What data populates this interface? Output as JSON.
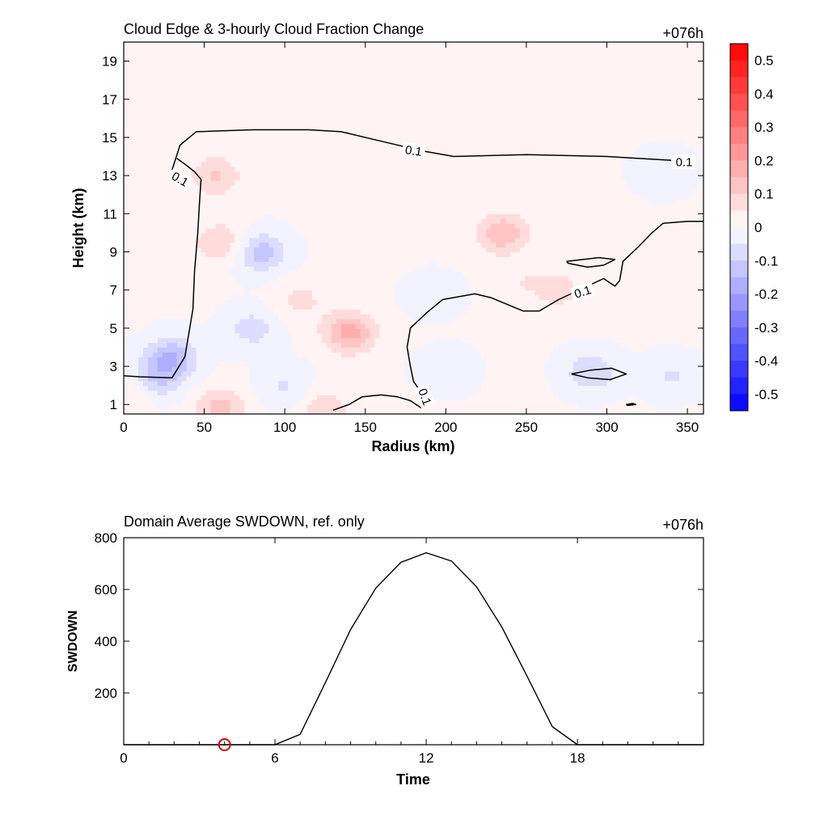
{
  "chart_data": [
    {
      "type": "heatmap",
      "title": "Cloud Edge & 3-hourly Cloud Fraction Change",
      "time_label": "+076h",
      "xlabel": "Radius (km)",
      "ylabel": "Height (km)",
      "xlim": [
        0,
        360
      ],
      "ylim": [
        0.5,
        20
      ],
      "xticks": [
        "0",
        "50",
        "100",
        "150",
        "200",
        "250",
        "300",
        "350"
      ],
      "yticks": [
        "1",
        "3",
        "5",
        "7",
        "9",
        "11",
        "13",
        "15",
        "17",
        "19"
      ],
      "colorbar": {
        "min": -0.55,
        "max": 0.55,
        "levels": 22,
        "ticks": [
          "0.5",
          "0.4",
          "0.3",
          "0.2",
          "0.1",
          "0",
          "-0.1",
          "-0.2",
          "-0.3",
          "-0.4",
          "-0.5"
        ],
        "low_color": "#0000ff",
        "mid_color": "#ffffff",
        "high_color": "#ff0000"
      },
      "contour_level": "0.1",
      "contour_labels": [
        "0.1",
        "0.1",
        "0.1",
        "0.1",
        "0.1"
      ],
      "features": [
        {
          "r": 140,
          "z": 4.8,
          "value": 0.17
        },
        {
          "r": 235,
          "z": 10.0,
          "value": 0.14
        },
        {
          "r": 60,
          "z": 9.5,
          "value": 0.1
        },
        {
          "r": 57,
          "z": 13.0,
          "value": 0.1
        },
        {
          "r": 60,
          "z": 0.8,
          "value": 0.12
        },
        {
          "r": 125,
          "z": 0.8,
          "value": 0.08
        },
        {
          "r": 110,
          "z": 6.5,
          "value": 0.06
        },
        {
          "r": 270,
          "z": 7.0,
          "value": 0.07
        },
        {
          "r": 245,
          "z": 7.5,
          "value": 0.04
        },
        {
          "r": 5,
          "z": 1.6,
          "value": 0.06
        },
        {
          "r": 85,
          "z": 9.0,
          "value": -0.13
        },
        {
          "r": 30,
          "z": 3.5,
          "value": -0.15
        },
        {
          "r": 20,
          "z": 2.3,
          "value": -0.11
        },
        {
          "r": 80,
          "z": 5.0,
          "value": -0.08
        },
        {
          "r": 290,
          "z": 2.7,
          "value": -0.1
        },
        {
          "r": 200,
          "z": 2.8,
          "value": -0.05
        },
        {
          "r": 100,
          "z": 2.0,
          "value": -0.06
        },
        {
          "r": 335,
          "z": 13.2,
          "value": -0.05
        },
        {
          "r": 192,
          "z": 6.8,
          "value": -0.04
        },
        {
          "r": 340,
          "z": 2.5,
          "value": -0.06
        }
      ],
      "contours": [
        [
          [
            30,
            13.3
          ],
          [
            35,
            14.6
          ],
          [
            45,
            15.3
          ],
          [
            80,
            15.4
          ],
          [
            115,
            15.4
          ],
          [
            135,
            15.3
          ],
          [
            160,
            14.8
          ],
          [
            185,
            14.3
          ],
          [
            205,
            14.0
          ],
          [
            250,
            14.1
          ],
          [
            300,
            14.0
          ],
          [
            340,
            13.8
          ]
        ],
        [
          [
            0,
            2.5
          ],
          [
            10,
            2.45
          ],
          [
            30,
            2.4
          ],
          [
            38,
            3.5
          ],
          [
            43,
            6.0
          ],
          [
            44,
            8.0
          ],
          [
            46,
            10.0
          ],
          [
            47,
            11.5
          ],
          [
            48,
            12.8
          ],
          [
            44,
            13.2
          ],
          [
            38,
            13.6
          ],
          [
            33,
            13.9
          ]
        ],
        [
          [
            185,
            0.8
          ],
          [
            178,
            1.2
          ],
          [
            170,
            1.4
          ],
          [
            160,
            1.5
          ],
          [
            148,
            1.4
          ],
          [
            140,
            1.0
          ],
          [
            130,
            0.7
          ]
        ],
        [
          [
            185,
            1.6
          ],
          [
            180,
            2.2
          ],
          [
            178,
            3.0
          ],
          [
            176,
            4.0
          ],
          [
            178,
            5.0
          ],
          [
            188,
            5.8
          ],
          [
            198,
            6.5
          ],
          [
            218,
            6.8
          ],
          [
            228,
            6.6
          ],
          [
            248,
            5.9
          ],
          [
            258,
            5.9
          ],
          [
            270,
            6.5
          ],
          [
            298,
            7.6
          ],
          [
            305,
            7.2
          ],
          [
            308,
            7.5
          ],
          [
            310,
            8.5
          ],
          [
            320,
            9.3
          ],
          [
            328,
            10.0
          ],
          [
            335,
            10.5
          ],
          [
            350,
            10.6
          ],
          [
            360,
            10.6
          ]
        ],
        [
          [
            275,
            8.5
          ],
          [
            295,
            8.7
          ],
          [
            305,
            8.6
          ],
          [
            298,
            8.3
          ],
          [
            288,
            8.2
          ],
          [
            276,
            8.4
          ],
          [
            275,
            8.5
          ]
        ],
        [
          [
            278,
            2.6
          ],
          [
            290,
            2.8
          ],
          [
            303,
            2.9
          ],
          [
            312,
            2.6
          ],
          [
            302,
            2.3
          ],
          [
            288,
            2.4
          ],
          [
            278,
            2.6
          ]
        ],
        [
          [
            312,
            1.0
          ],
          [
            316,
            1.05
          ],
          [
            318,
            1.0
          ],
          [
            313,
            0.95
          ],
          [
            312,
            1.0
          ]
        ]
      ],
      "contour_label_positions": [
        {
          "r": 180,
          "z": 14.3,
          "angle": 8
        },
        {
          "r": 348,
          "z": 13.7,
          "angle": 0
        },
        {
          "r": 35,
          "z": 12.8,
          "angle": 30
        },
        {
          "r": 285,
          "z": 6.9,
          "angle": -18
        },
        {
          "r": 187,
          "z": 1.4,
          "angle": 70
        }
      ]
    },
    {
      "type": "line",
      "title": "Domain Average SWDOWN, ref. only",
      "time_label": "+076h",
      "xlabel": "Time",
      "ylabel": "SWDOWN",
      "xlim": [
        0,
        23
      ],
      "ylim": [
        0,
        800
      ],
      "xticks": [
        "0",
        "6",
        "12",
        "18"
      ],
      "yticks": [
        "200",
        "400",
        "600",
        "800"
      ],
      "x": [
        0,
        1,
        2,
        3,
        4,
        5,
        6,
        7,
        8,
        9,
        10,
        11,
        12,
        13,
        14,
        15,
        16,
        17,
        18,
        19,
        20,
        21,
        22,
        23
      ],
      "values": [
        0,
        0,
        0,
        0,
        0,
        0,
        0,
        40,
        240,
        445,
        605,
        705,
        742,
        710,
        610,
        455,
        265,
        70,
        0,
        0,
        0,
        0,
        0,
        0
      ],
      "marker": {
        "x": 4,
        "y": 0,
        "color": "#dd0000"
      }
    }
  ]
}
